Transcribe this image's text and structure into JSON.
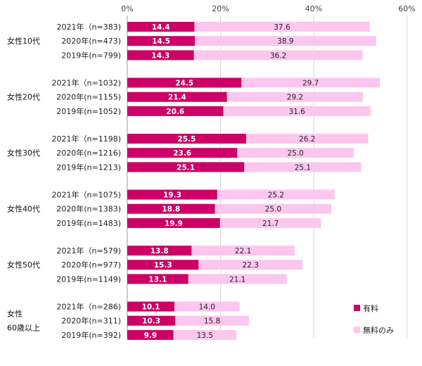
{
  "chart_data": {
    "type": "bar",
    "orientation": "horizontal",
    "stacked": true,
    "title": "",
    "xlabel": "",
    "ylabel": "",
    "xlim": [
      0,
      60
    ],
    "ticks": [
      "0%",
      "20%",
      "40%",
      "60%"
    ],
    "tick_values": [
      0,
      20,
      40,
      60
    ],
    "grid": true,
    "legend_position": "bottom-right",
    "series": [
      {
        "name": "有料",
        "color": "#cc0066"
      },
      {
        "name": "無料のみ",
        "color": "#fcc7ee"
      }
    ],
    "groups": [
      {
        "label": "女性10代",
        "rows": [
          {
            "label": "2021年（n=383)",
            "values": [
              14.4,
              37.6
            ]
          },
          {
            "label": "2020年(n=473)",
            "values": [
              14.5,
              38.9
            ]
          },
          {
            "label": "2019年(n=799)",
            "values": [
              14.3,
              36.2
            ]
          }
        ]
      },
      {
        "label": "女性20代",
        "rows": [
          {
            "label": "2021年（n=1032)",
            "values": [
              24.5,
              29.7
            ]
          },
          {
            "label": "2020年(n=1155)",
            "values": [
              21.4,
              29.2
            ]
          },
          {
            "label": "2019年(n=1052)",
            "values": [
              20.6,
              31.6
            ]
          }
        ]
      },
      {
        "label": "女性30代",
        "rows": [
          {
            "label": "2021年（n=1198)",
            "values": [
              25.5,
              26.2
            ]
          },
          {
            "label": "2020年(n=1216)",
            "values": [
              23.6,
              25.0
            ]
          },
          {
            "label": "2019年(n=1213)",
            "values": [
              25.1,
              25.1
            ]
          }
        ]
      },
      {
        "label": "女性40代",
        "rows": [
          {
            "label": "2021年（n=1075)",
            "values": [
              19.3,
              25.2
            ]
          },
          {
            "label": "2020年(n=1383)",
            "values": [
              18.8,
              25.0
            ]
          },
          {
            "label": "2019年(n=1483)",
            "values": [
              19.9,
              21.7
            ]
          }
        ]
      },
      {
        "label": "女性50代",
        "rows": [
          {
            "label": "2021年（n=579)",
            "values": [
              13.8,
              22.1
            ]
          },
          {
            "label": "2020年(n=977)",
            "values": [
              15.3,
              22.3
            ]
          },
          {
            "label": "2019年(n=1149)",
            "values": [
              13.1,
              21.1
            ]
          }
        ]
      },
      {
        "label": [
          "女性",
          "60歳以上"
        ],
        "rows": [
          {
            "label": "2021年（n=286)",
            "values": [
              10.1,
              14.0
            ]
          },
          {
            "label": "2020年(n=311)",
            "values": [
              10.3,
              15.8
            ]
          },
          {
            "label": "2019年(n=392)",
            "values": [
              9.9,
              13.5
            ]
          }
        ]
      }
    ]
  }
}
